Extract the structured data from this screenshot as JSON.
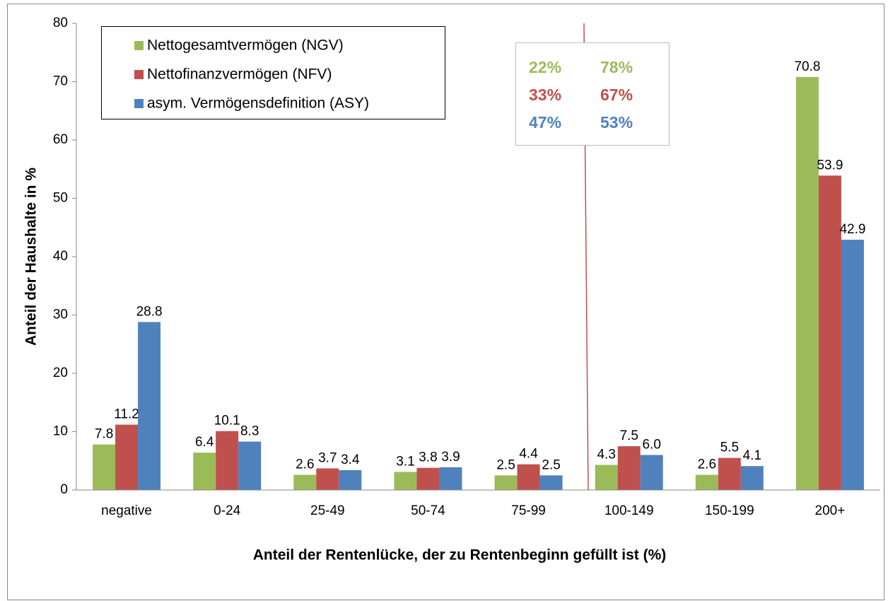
{
  "chart_data": {
    "type": "bar",
    "x_label": "Anteil der Rentenlücke, der zu Rentenbeginn gefüllt ist (%)",
    "y_label": "Anteil der Haushalte in %",
    "categories": [
      "negative",
      "0-24",
      "25-49",
      "50-74",
      "75-99",
      "100-149",
      "150-199",
      "200+"
    ],
    "series": [
      {
        "name": "Nettogesamtvermögen (NGV)",
        "color": "#9bbb59",
        "values": [
          7.8,
          6.4,
          2.6,
          3.1,
          2.5,
          4.3,
          2.6,
          70.8
        ]
      },
      {
        "name": "Nettofinanzvermögen (NFV)",
        "color": "#c0504d",
        "values": [
          11.2,
          10.1,
          3.7,
          3.8,
          4.4,
          7.5,
          5.5,
          53.9
        ]
      },
      {
        "name": "asym. Vermögensdefinition (ASY)",
        "color": "#4f81bd",
        "values": [
          28.8,
          8.3,
          3.4,
          3.9,
          2.5,
          6.0,
          4.1,
          42.9
        ],
        "value_labels": [
          "28.8",
          "8.3",
          "3.4",
          "3.9",
          "2.5",
          "6.0",
          "4.1",
          "42.9"
        ]
      }
    ],
    "ylim": [
      0,
      80
    ],
    "yticks": [
      0,
      10,
      20,
      30,
      40,
      50,
      60,
      70,
      80
    ],
    "grid": false,
    "legend": "upper left",
    "annotations": [
      {
        "texts": [
          "22%",
          "78%"
        ],
        "color": "#9bbb59"
      },
      {
        "texts": [
          "33%",
          "67%"
        ],
        "color": "#c0504d"
      },
      {
        "texts": [
          "47%",
          "53%"
        ],
        "color": "#4f81bd"
      }
    ]
  }
}
